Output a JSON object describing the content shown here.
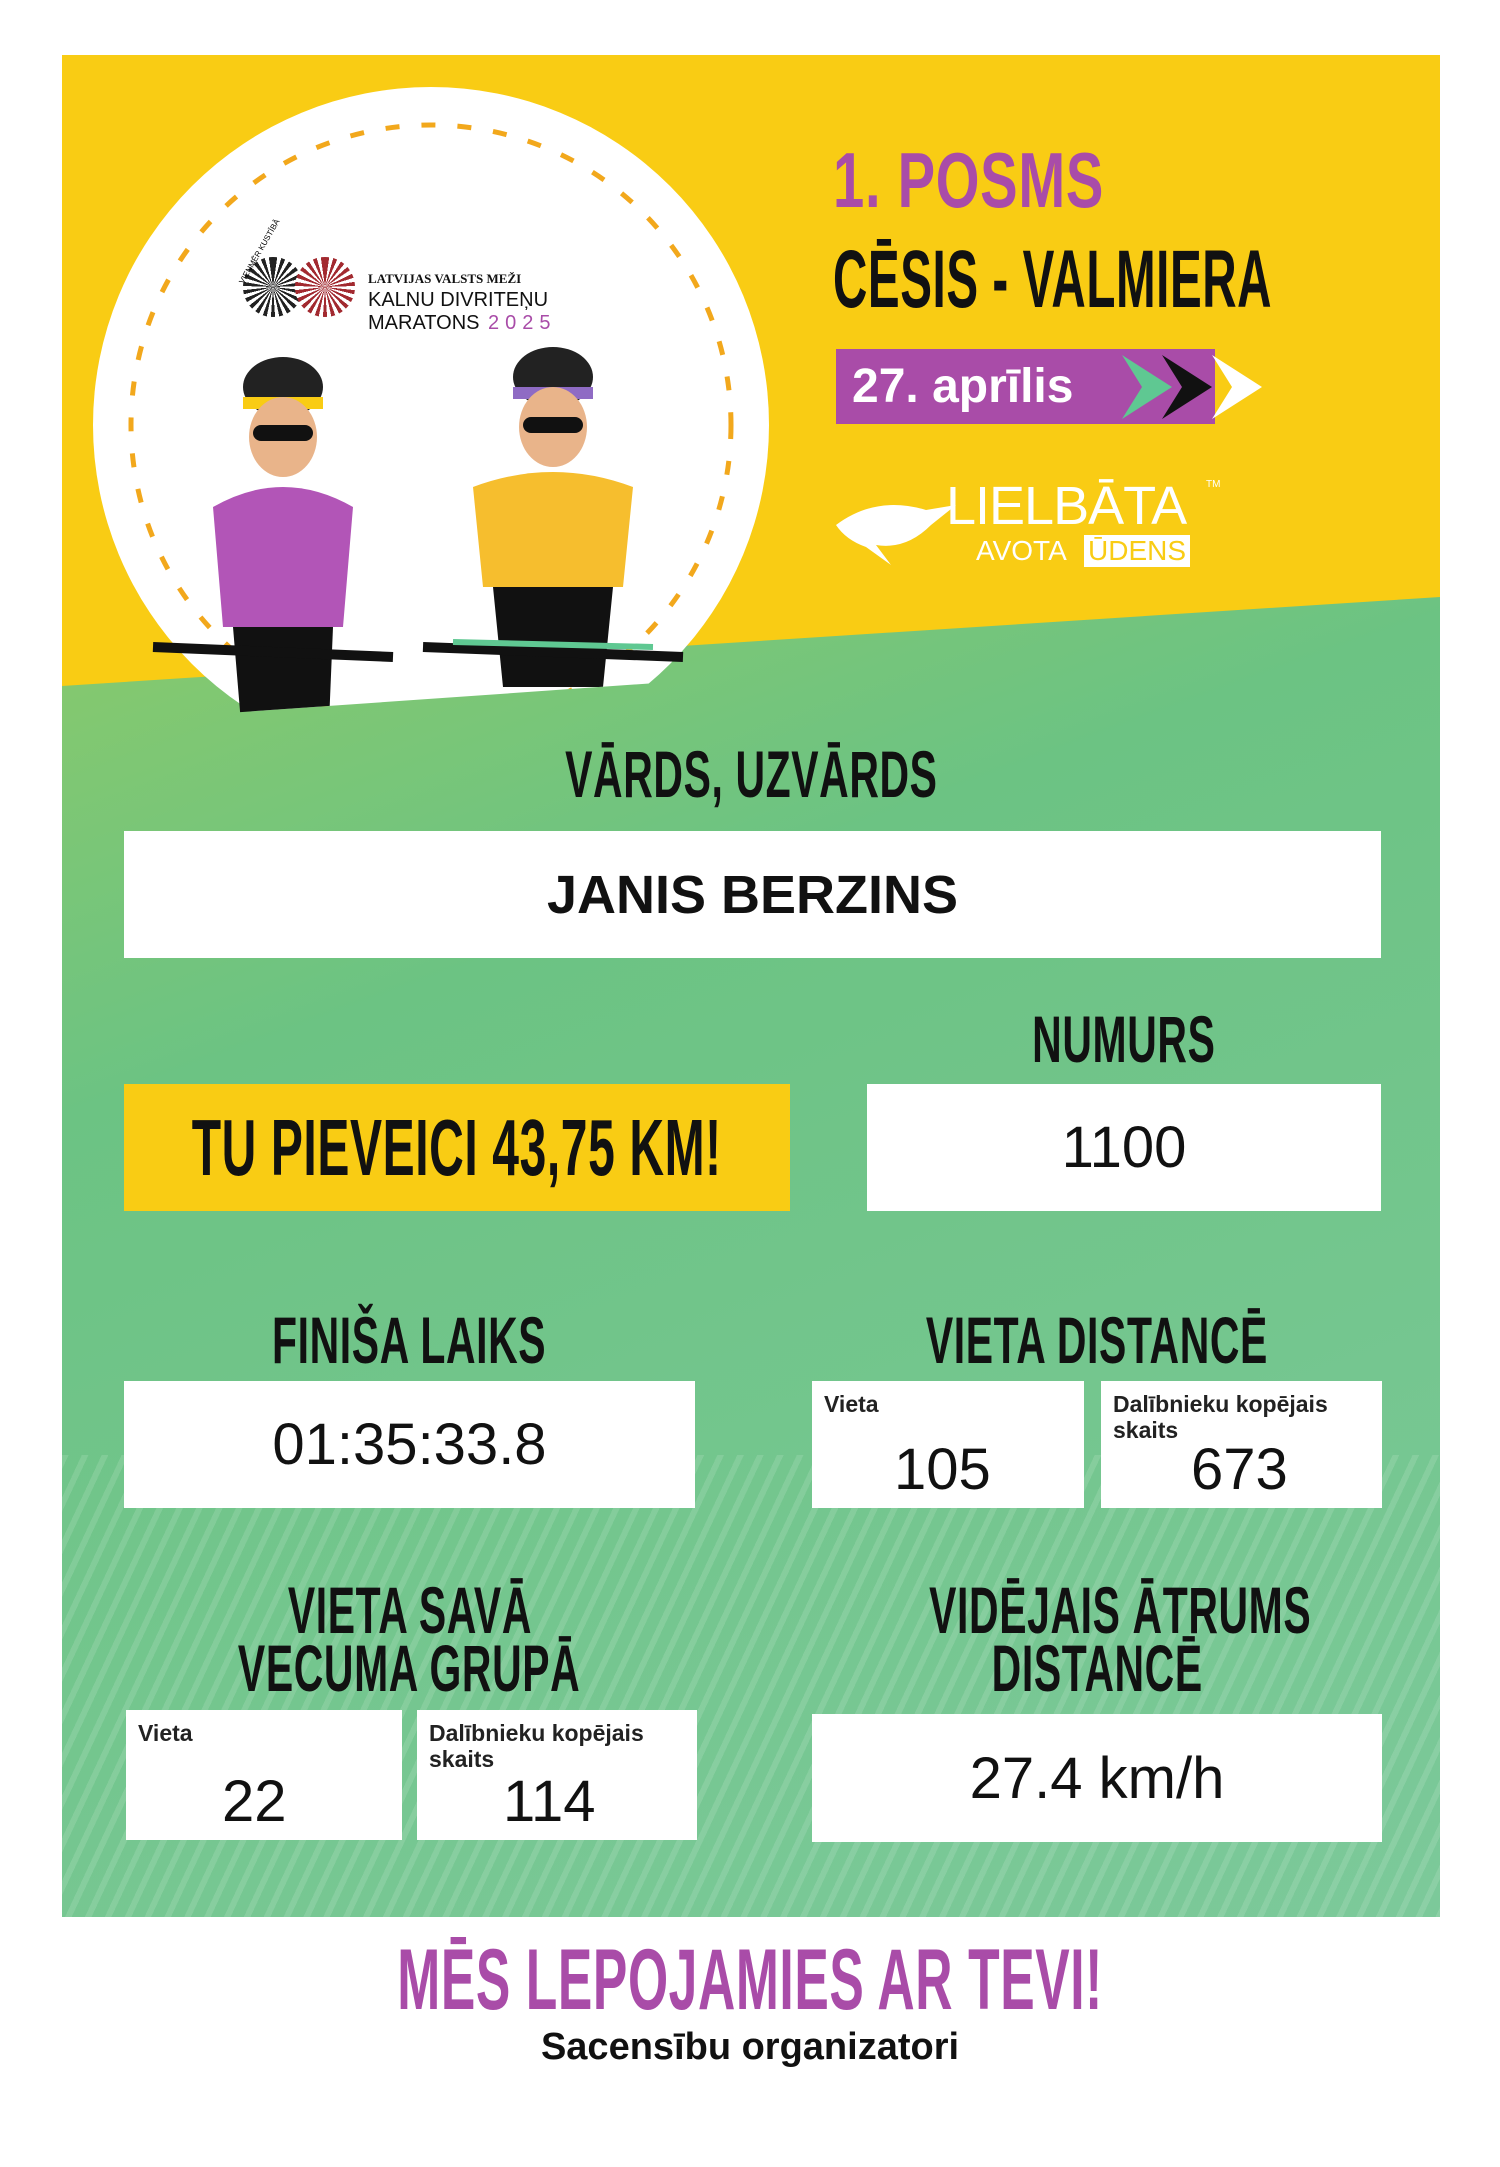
{
  "header": {
    "stage": "1. POSMS",
    "route": "CĒSIS - VALMIERA",
    "date": "27. aprīlis",
    "event_logo": {
      "line1": "LATVIJAS VALSTS MEŽI",
      "line2": "KALNU DIVRITEŅU",
      "line3": "MARATONS",
      "year": "2025",
      "ring_text": "VIENMĒR KUSTĪBĀ"
    },
    "sponsor_logo": {
      "name": "LIELBĀTA",
      "tm": "TM",
      "sub1": "AVOTA",
      "sub2": "ŪDENS"
    }
  },
  "participant": {
    "name_label": "VĀRDS, UZVĀRDS",
    "name": "JANIS BERZINS",
    "number_label": "NUMURS",
    "number": "1100",
    "distance_banner": "TU PIEVEICI 43,75 KM!"
  },
  "results": {
    "finish_label": "FINIŠA LAIKS",
    "finish_time": "01:35:33.8",
    "overall_label": "VIETA DISTANCĒ",
    "overall_place_label": "Vieta",
    "overall_place": "105",
    "overall_total_label": "Dalībnieku kopējais skaits",
    "overall_total": "673",
    "age_label_1": "VIETA SAVĀ",
    "age_label_2": "VECUMA GRUPĀ",
    "age_place_label": "Vieta",
    "age_place": "22",
    "age_total_label": "Dalībnieku kopējais skaits",
    "age_total": "114",
    "speed_label_1": "VIDĒJAIS ĀTRUMS",
    "speed_label_2": "DISTANCĒ",
    "avg_speed": "27.4 km/h"
  },
  "footer": {
    "slogan": "MĒS LEPOJAMIES AR TEVI!",
    "signature": "Sacensību organizatori"
  },
  "colors": {
    "yellow": "#f9cc14",
    "purple": "#a94ca8",
    "green": "#6cc383"
  }
}
